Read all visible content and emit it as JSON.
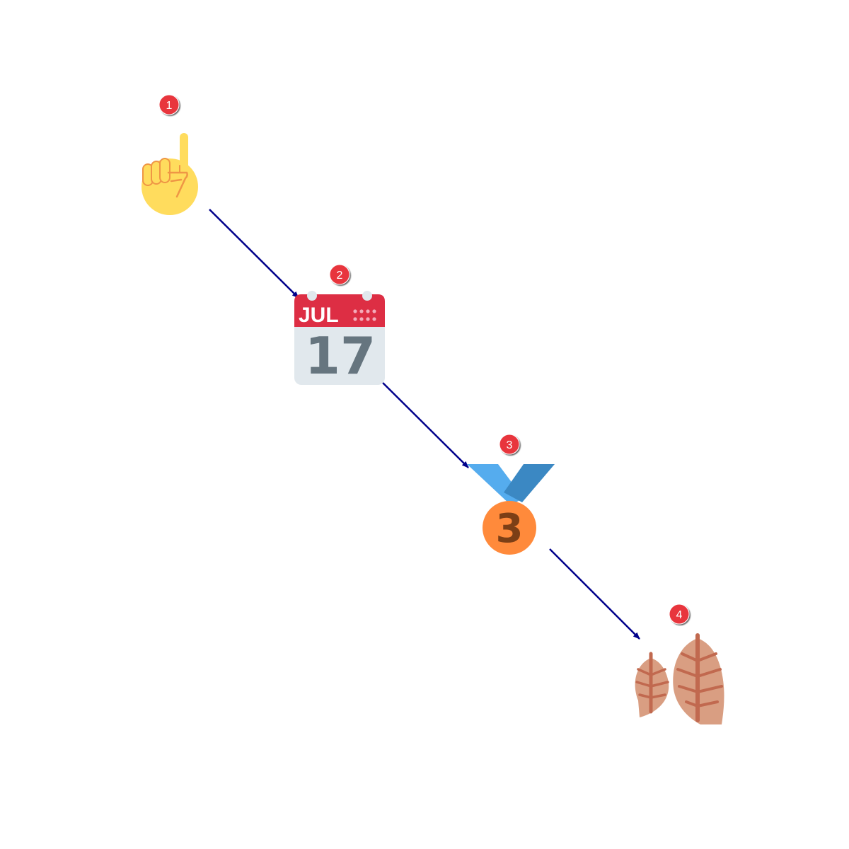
{
  "steps": [
    {
      "number": "1",
      "icon": "index-pointing-up-icon"
    },
    {
      "number": "2",
      "icon": "calendar-icon",
      "month": "JUL",
      "day": "17"
    },
    {
      "number": "3",
      "icon": "third-place-medal-icon",
      "medal_number": "3"
    },
    {
      "number": "4",
      "icon": "fallen-leaves-icon"
    }
  ],
  "colors": {
    "arrow": "#00008b",
    "badge": "#e8363d",
    "skin": "#ffdc5d",
    "skin_line": "#ef9645",
    "calendar_header": "#dd2e44",
    "calendar_body": "#e1e8ed",
    "calendar_text": "#66757f",
    "ribbon_light": "#55acee",
    "ribbon_dark": "#3b88c3",
    "medal": "#ff8a3b",
    "medal_text": "#7c3f16",
    "leaf": "#d99e82",
    "leaf_vein": "#c1694f"
  }
}
